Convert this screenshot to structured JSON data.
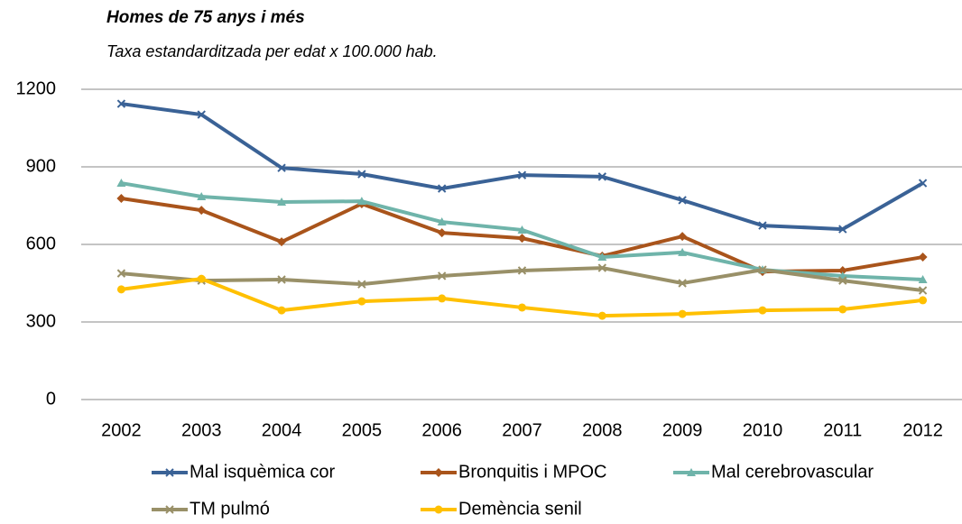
{
  "chart_data": {
    "type": "line",
    "title": "Homes de 75 anys i més",
    "subtitle": "Taxa estandarditzada per edat x 100.000 hab.",
    "categories": [
      "2002",
      "2003",
      "2004",
      "2005",
      "2006",
      "2007",
      "2008",
      "2009",
      "2010",
      "2011",
      "2012"
    ],
    "ylim": [
      0,
      1200
    ],
    "yticks": [
      0,
      300,
      600,
      900,
      1200
    ],
    "grid": true,
    "series": [
      {
        "name": "Mal isquèmica cor",
        "color": "#3a6296",
        "marker": "x",
        "values": [
          1144,
          1102,
          896,
          872,
          816,
          868,
          862,
          771,
          673,
          659,
          837
        ]
      },
      {
        "name": "Bronquitis i MPOC",
        "color": "#a9541b",
        "marker": "diamond",
        "values": [
          778,
          732,
          610,
          757,
          645,
          624,
          555,
          631,
          495,
          499,
          551
        ]
      },
      {
        "name": "Mal cerebrovascular",
        "color": "#6fb4aa",
        "marker": "triangle",
        "values": [
          837,
          785,
          764,
          767,
          687,
          656,
          551,
          569,
          502,
          478,
          464
        ]
      },
      {
        "name": "TM pulmó",
        "color": "#999068",
        "marker": "x",
        "values": [
          488,
          460,
          464,
          446,
          478,
          499,
          509,
          450,
          502,
          460,
          422
        ]
      },
      {
        "name": "Demència senil",
        "color": "#ffc000",
        "marker": "circle",
        "values": [
          426,
          467,
          345,
          380,
          391,
          356,
          324,
          331,
          345,
          349,
          384
        ]
      }
    ]
  }
}
